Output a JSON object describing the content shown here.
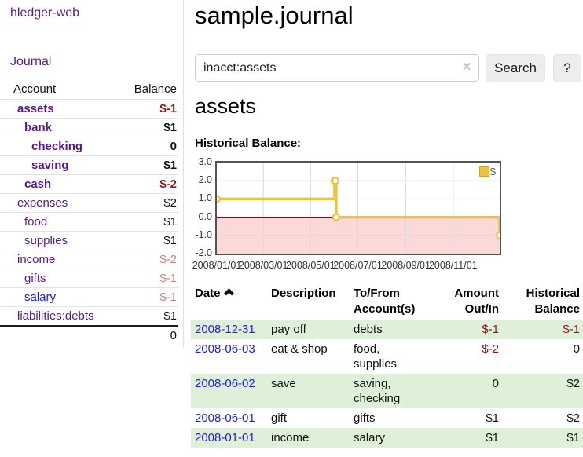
{
  "app": {
    "title": "hledger-web"
  },
  "sidebar": {
    "journal_link": "Journal",
    "account_header": "Account",
    "balance_header": "Balance",
    "accounts": [
      {
        "label": "assets",
        "balance": "$-1",
        "level": 1,
        "bold": true,
        "neg": "dark"
      },
      {
        "label": "bank",
        "balance": "$1",
        "level": 2,
        "bold": true,
        "neg": "none"
      },
      {
        "label": "checking",
        "balance": "0",
        "level": 3,
        "bold": true,
        "neg": "none"
      },
      {
        "label": "saving",
        "balance": "$1",
        "level": 3,
        "bold": true,
        "neg": "none"
      },
      {
        "label": "cash",
        "balance": "$-2",
        "level": 2,
        "bold": true,
        "neg": "dark"
      },
      {
        "label": "expenses",
        "balance": "$2",
        "level": 1,
        "bold": false,
        "neg": "none"
      },
      {
        "label": "food",
        "balance": "$1",
        "level": 2,
        "bold": false,
        "neg": "none"
      },
      {
        "label": "supplies",
        "balance": "$1",
        "level": 2,
        "bold": false,
        "neg": "none"
      },
      {
        "label": "income",
        "balance": "$-2",
        "level": 1,
        "bold": false,
        "neg": "light"
      },
      {
        "label": "gifts",
        "balance": "$-1",
        "level": 2,
        "bold": false,
        "neg": "light"
      },
      {
        "label": "salary",
        "balance": "$-1",
        "level": 2,
        "bold": false,
        "neg": "light",
        "link_color": "blue"
      },
      {
        "label": "liabilities:debts",
        "balance": "$1",
        "level": 1,
        "bold": false,
        "neg": "none"
      }
    ],
    "total": "0"
  },
  "main": {
    "title": "sample.journal",
    "search": {
      "value": "inacct:assets",
      "clear_icon": "×",
      "button_label": "Search",
      "help_label": "?"
    },
    "account_heading": "assets",
    "chart_label": "Historical Balance:"
  },
  "chart_data": {
    "type": "line",
    "title": "Historical Balance:",
    "step": true,
    "series": [
      {
        "name": "$",
        "color": "#edc240",
        "points": [
          [
            "2008-01-01",
            1
          ],
          [
            "2008-06-01",
            2
          ],
          [
            "2008-06-02",
            2
          ],
          [
            "2008-06-03",
            0
          ],
          [
            "2008-12-31",
            -1
          ]
        ]
      }
    ],
    "x_ticks": [
      "2008/01/01",
      "2008/03/01",
      "2008/05/01",
      "2008/07/01",
      "2008/09/01",
      "2008/11/01"
    ],
    "y_ticks": [
      "3.0",
      "2.0",
      "1.0",
      "0.0",
      "-1.0",
      "-2.0"
    ],
    "ylim": [
      -2,
      3
    ],
    "grid": true,
    "legend_position": "top-right",
    "negative_region_fill": "#fbd9d9",
    "zero_line_color": "#a40000"
  },
  "register": {
    "headers": {
      "date": "Date",
      "description": "Description",
      "accounts": "To/From Account(s)",
      "amount": "Amount Out/In",
      "balance": "Historical Balance"
    },
    "sort": "ascending",
    "rows": [
      {
        "date": "2008-12-31",
        "description": "pay off",
        "accounts": "debts",
        "amount": "$-1",
        "amount_neg": true,
        "balance": "$-1",
        "balance_neg": true
      },
      {
        "date": "2008-06-03",
        "description": "eat & shop",
        "accounts": "food, supplies",
        "amount": "$-2",
        "amount_neg": true,
        "balance": "0",
        "balance_neg": false
      },
      {
        "date": "2008-06-02",
        "description": "save",
        "accounts": "saving, checking",
        "amount": "0",
        "amount_neg": false,
        "balance": "$2",
        "balance_neg": false
      },
      {
        "date": "2008-06-01",
        "description": "gift",
        "accounts": "gifts",
        "amount": "$1",
        "amount_neg": false,
        "balance": "$2",
        "balance_neg": false
      },
      {
        "date": "2008-01-01",
        "description": "income",
        "accounts": "salary",
        "amount": "$1",
        "amount_neg": false,
        "balance": "$1",
        "balance_neg": false
      }
    ]
  },
  "colors": {
    "link_purple": "#551a8b",
    "link_blue": "#2222dd",
    "negative_dark": "#8b1a1a",
    "negative_light": "#c98383",
    "row_stripe_green": "#dff0d8",
    "chart_line_gold": "#edc240",
    "chart_negative_region": "#fbd9d9",
    "chart_zero_line": "#a40000",
    "button_gray": "#ededed"
  }
}
